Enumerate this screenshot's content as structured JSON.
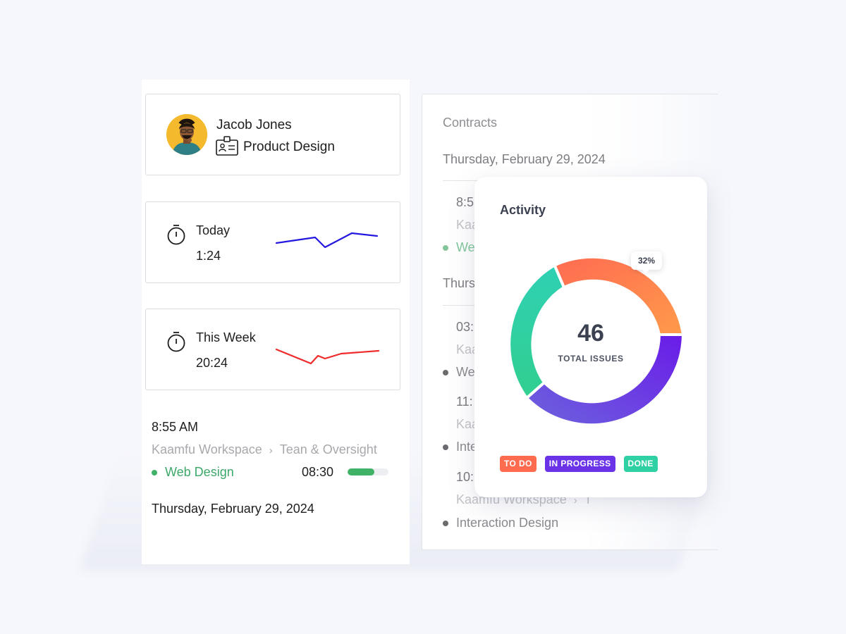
{
  "profile": {
    "name": "Jacob Jones",
    "role": "Product Design"
  },
  "stats": [
    {
      "label": "Today",
      "value": "1:24",
      "color": "#2418e0"
    },
    {
      "label": "This Week",
      "value": "20:24",
      "color": "#ef2b2b"
    }
  ],
  "entry": {
    "time": "8:55 AM",
    "workspace": "Kaamfu Workspace",
    "separator": "›",
    "project": "Tean & Oversight",
    "task": "Web Design",
    "duration": "08:30",
    "progress": 0.65,
    "date": "Thursday, February 29, 2024"
  },
  "contracts": {
    "title": "Contracts",
    "date1": "Thursday, February 29, 2024",
    "row1_time": "8:5",
    "row1_ws": "Kaa",
    "row1_task": "We",
    "date2": "Thurs",
    "row2_time": "03:",
    "row2_ws": "Kaa",
    "row2_task": "We",
    "row3_time": "11:",
    "row3_ws": "Kaa",
    "row3_task": "Inte",
    "row4_time": "10:",
    "row4_ws": "Kaamfu Workspace",
    "row4_sep": "›",
    "row4_ws_tail": "T",
    "row4_task": "Interaction Design"
  },
  "activity": {
    "title": "Activity",
    "total": "46",
    "total_label": "TOTAL ISSUES",
    "highlight_pct": "32%",
    "legend": [
      {
        "label": "TO DO",
        "color": "#ff6b4f"
      },
      {
        "label": "IN PROGRESS",
        "color": "#6a33e8"
      },
      {
        "label": "DONE",
        "color": "#2fd0a4"
      }
    ]
  }
}
